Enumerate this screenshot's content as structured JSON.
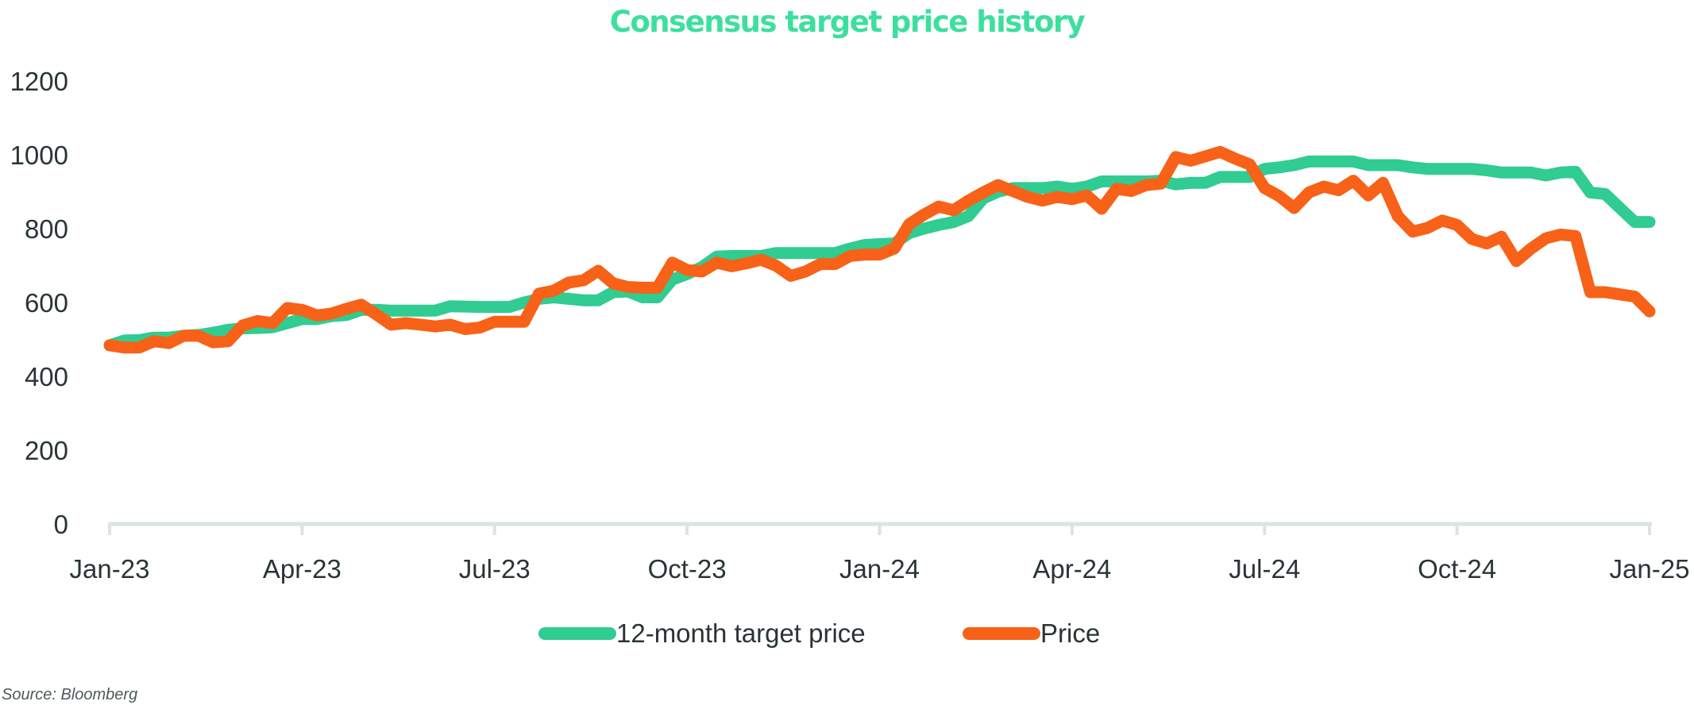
{
  "chart_data": {
    "type": "line",
    "title": "Consensus target price history",
    "xlabel": "",
    "ylabel": "",
    "x_unit": "weeks since Jan-23",
    "x_range": [
      0,
      104
    ],
    "ylim": [
      0,
      1200
    ],
    "yticks": [
      0,
      200,
      400,
      600,
      800,
      1000,
      1200
    ],
    "xticks": [
      {
        "week": 0,
        "label": "Jan-23"
      },
      {
        "week": 13,
        "label": "Apr-23"
      },
      {
        "week": 26,
        "label": "Jul-23"
      },
      {
        "week": 39,
        "label": "Oct-23"
      },
      {
        "week": 52,
        "label": "Jan-24"
      },
      {
        "week": 65,
        "label": "Apr-24"
      },
      {
        "week": 78,
        "label": "Jul-24"
      },
      {
        "week": 91,
        "label": "Oct-24"
      },
      {
        "week": 104,
        "label": "Jan-25"
      }
    ],
    "grid": false,
    "legend_position": "bottom",
    "series": [
      {
        "name": "12-month target price",
        "color": "#30cc92",
        "values": [
          484,
          497,
          498,
          505,
          505,
          510,
          512,
          518,
          526,
          530,
          531,
          533,
          544,
          555,
          555,
          563,
          566,
          580,
          580,
          578,
          578,
          578,
          578,
          590,
          589,
          588,
          588,
          588,
          600,
          610,
          614,
          610,
          606,
          606,
          628,
          630,
          614,
          614,
          662,
          677,
          696,
          724,
          726,
          726,
          726,
          734,
          734,
          734,
          734,
          734,
          746,
          756,
          758,
          760,
          788,
          800,
          810,
          818,
          834,
          882,
          900,
          910,
          910,
          910,
          914,
          908,
          914,
          928,
          928,
          928,
          928,
          930,
          920,
          924,
          924,
          940,
          940,
          940,
          962,
          966,
          972,
          982,
          982,
          982,
          982,
          972,
          972,
          972,
          966,
          962,
          962,
          962,
          962,
          958,
          952,
          952,
          952,
          944,
          952,
          954,
          898,
          894,
          856,
          818,
          818
        ]
      },
      {
        "name": "Price",
        "color": "#f76218",
        "values": [
          484,
          478,
          478,
          495,
          490,
          510,
          510,
          492,
          495,
          538,
          550,
          544,
          585,
          580,
          565,
          570,
          583,
          594,
          568,
          540,
          544,
          540,
          535,
          540,
          528,
          532,
          548,
          548,
          548,
          624,
          632,
          654,
          660,
          686,
          652,
          642,
          640,
          640,
          708,
          688,
          684,
          708,
          698,
          706,
          716,
          700,
          672,
          684,
          704,
          704,
          726,
          730,
          730,
          746,
          812,
          838,
          860,
          850,
          876,
          898,
          918,
          902,
          886,
          876,
          886,
          880,
          890,
          854,
          908,
          902,
          918,
          922,
          994,
          984,
          996,
          1008,
          990,
          974,
          910,
          888,
          856,
          898,
          914,
          904,
          930,
          890,
          924,
          834,
          792,
          802,
          822,
          810,
          772,
          760,
          778,
          712,
          746,
          774,
          784,
          780,
          628,
          628,
          622,
          616,
          576
        ]
      }
    ],
    "source": "Source: Bloomberg"
  }
}
